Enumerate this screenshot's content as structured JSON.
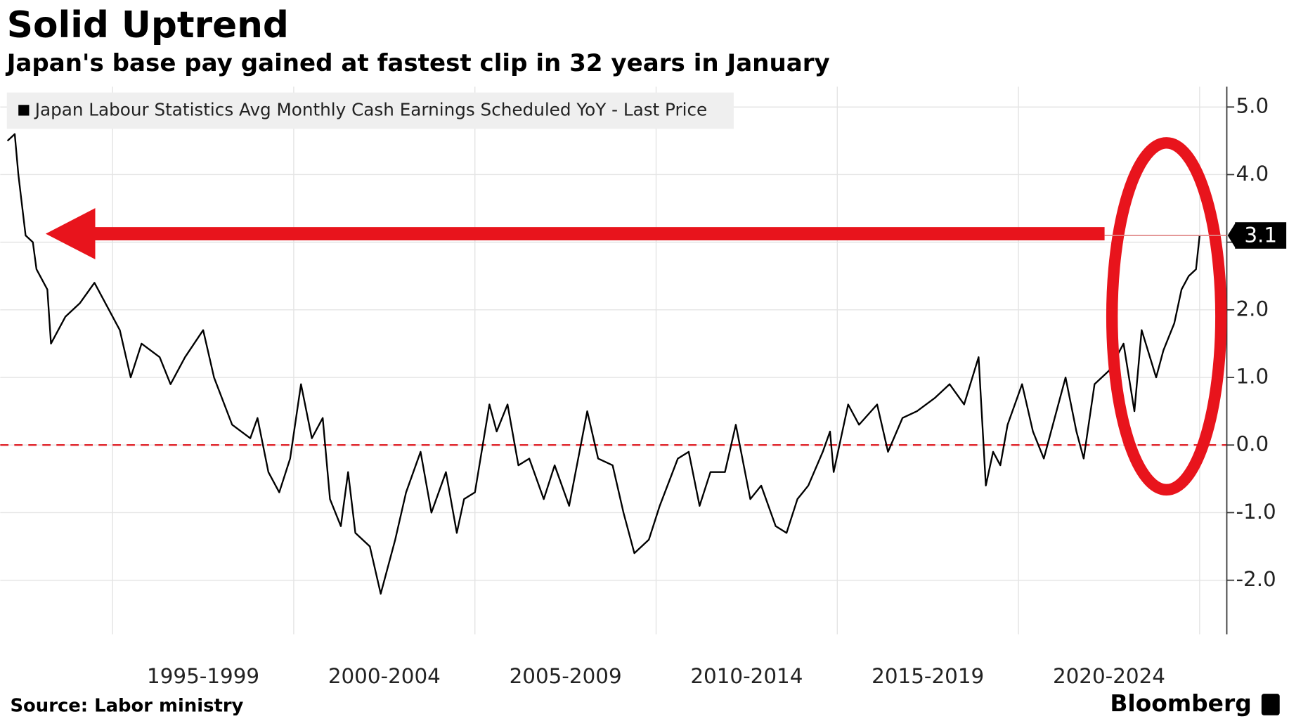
{
  "chart_data": {
    "type": "line",
    "title": "Solid Uptrend",
    "subtitle": "Japan's base pay gained at fastest clip in 32 years in January",
    "source": "Source: Labor ministry",
    "brand": "Bloomberg",
    "x": [
      1992.1,
      1992.3,
      1992.4,
      1992.6,
      1992.8,
      1992.9,
      1993.2,
      1993.3,
      1993.7,
      1994.1,
      1994.5,
      1994.9,
      1995.2,
      1995.5,
      1995.8,
      1996.3,
      1996.6,
      1997.0,
      1997.5,
      1997.8,
      1998.3,
      1998.8,
      1999.0,
      1999.3,
      1999.6,
      1999.9,
      2000.2,
      2000.5,
      2000.8,
      2001.0,
      2001.3,
      2001.5,
      2001.7,
      2002.1,
      2002.4,
      2002.8,
      2003.1,
      2003.5,
      2003.8,
      2004.2,
      2004.5,
      2004.7,
      2005.0,
      2005.4,
      2005.6,
      2005.9,
      2006.2,
      2006.5,
      2006.9,
      2007.2,
      2007.6,
      2008.1,
      2008.4,
      2008.8,
      2009.1,
      2009.4,
      2009.8,
      2010.1,
      2010.6,
      2010.9,
      2011.2,
      2011.5,
      2011.9,
      2012.2,
      2012.6,
      2012.9,
      2013.3,
      2013.6,
      2013.9,
      2014.2,
      2014.6,
      2014.8,
      2014.9,
      2015.3,
      2015.6,
      2016.1,
      2016.4,
      2016.8,
      2017.2,
      2017.7,
      2018.1,
      2018.5,
      2018.9,
      2019.1,
      2019.3,
      2019.5,
      2019.7,
      2020.1,
      2020.4,
      2020.7,
      2021.0,
      2021.3,
      2021.6,
      2021.8,
      2022.1,
      2022.5,
      2022.9,
      2023.2,
      2023.4,
      2023.8,
      2024.0,
      2024.3,
      2024.5,
      2024.7,
      2024.9,
      2025.0
    ],
    "series": [
      {
        "name": "Japan Labour Statistics Avg Monthly Cash Earnings Scheduled YoY - Last Price",
        "color": "#000000",
        "values": [
          4.5,
          4.6,
          4.0,
          3.1,
          3.0,
          2.6,
          2.3,
          1.5,
          1.9,
          2.1,
          2.4,
          2.0,
          1.7,
          1.0,
          1.5,
          1.3,
          0.9,
          1.3,
          1.7,
          1.0,
          0.3,
          0.1,
          0.4,
          -0.4,
          -0.7,
          -0.2,
          0.9,
          0.1,
          0.4,
          -0.8,
          -1.2,
          -0.4,
          -1.3,
          -1.5,
          -2.2,
          -1.4,
          -0.7,
          -0.1,
          -1.0,
          -0.4,
          -1.3,
          -0.8,
          -0.7,
          0.6,
          0.2,
          0.6,
          -0.3,
          -0.2,
          -0.8,
          -0.3,
          -0.9,
          0.5,
          -0.2,
          -0.3,
          -1.0,
          -1.6,
          -1.4,
          -0.9,
          -0.2,
          -0.1,
          -0.9,
          -0.4,
          -0.4,
          0.3,
          -0.8,
          -0.6,
          -1.2,
          -1.3,
          -0.8,
          -0.6,
          -0.1,
          0.2,
          -0.4,
          0.6,
          0.3,
          0.6,
          -0.1,
          0.4,
          0.5,
          0.7,
          0.9,
          0.6,
          1.3,
          -0.6,
          -0.1,
          -0.3,
          0.3,
          0.9,
          0.2,
          -0.2,
          0.4,
          1.0,
          0.2,
          -0.2,
          0.9,
          1.1,
          1.5,
          0.5,
          1.7,
          1.0,
          1.4,
          1.8,
          2.3,
          2.5,
          2.6,
          3.1
        ]
      }
    ],
    "xlim": [
      1991.9,
      2025.75
    ],
    "xgrid": [
      1995,
      2000,
      2005,
      2010,
      2015,
      2020,
      2025
    ],
    "xticks": [
      {
        "value": 1997.5,
        "label": "1995-1999"
      },
      {
        "value": 2002.5,
        "label": "2000-2004"
      },
      {
        "value": 2007.5,
        "label": "2005-2009"
      },
      {
        "value": 2012.5,
        "label": "2010-2014"
      },
      {
        "value": 2017.5,
        "label": "2015-2019"
      },
      {
        "value": 2022.5,
        "label": "2020-2024"
      }
    ],
    "ylim": [
      -2.8,
      5.3
    ],
    "yticks": [
      {
        "value": 5,
        "label": "5.0"
      },
      {
        "value": 4,
        "label": "4.0"
      },
      {
        "value": 3,
        "label": "3.0"
      },
      {
        "value": 2,
        "label": "2.0"
      },
      {
        "value": 1,
        "label": "1.0"
      },
      {
        "value": 0,
        "label": "0.0"
      },
      {
        "value": -1,
        "label": "-1.0"
      },
      {
        "value": -2,
        "label": "-2.0"
      }
    ],
    "grid": true,
    "hline": 0,
    "hline_color": "#e0252b"
  }
}
